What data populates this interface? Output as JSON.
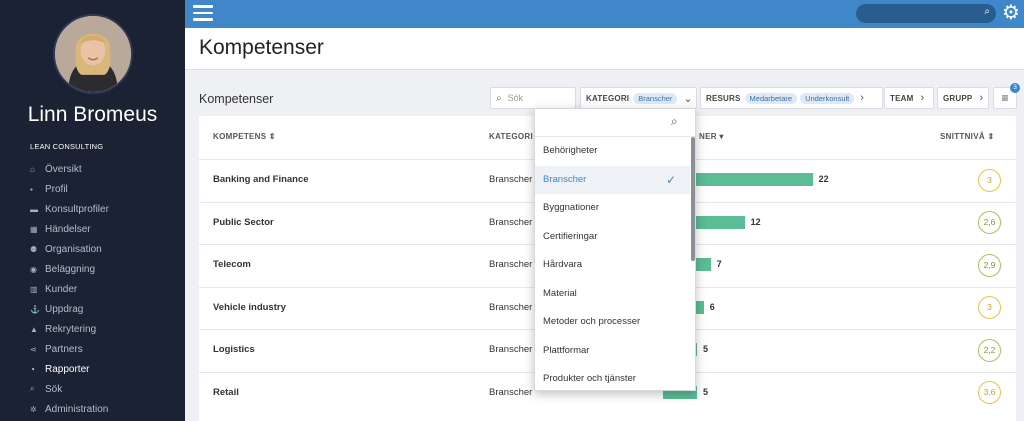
{
  "sidebar": {
    "user_name": "Linn Bromeus",
    "company": "LEAN CONSULTING",
    "items": [
      {
        "label": "Översikt",
        "icon": "home-icon",
        "glyph": "⌂"
      },
      {
        "label": "Profil",
        "icon": "profile-icon",
        "glyph": "▪"
      },
      {
        "label": "Konsultprofiler",
        "icon": "briefcase-icon",
        "glyph": "▬"
      },
      {
        "label": "Händelser",
        "icon": "calendar-icon",
        "glyph": "▦"
      },
      {
        "label": "Organisation",
        "icon": "people-icon",
        "glyph": "⚉"
      },
      {
        "label": "Beläggning",
        "icon": "target-icon",
        "glyph": "◉"
      },
      {
        "label": "Kunder",
        "icon": "building-icon",
        "glyph": "▥"
      },
      {
        "label": "Uppdrag",
        "icon": "anchor-icon",
        "glyph": "⚓"
      },
      {
        "label": "Rekrytering",
        "icon": "graduation-icon",
        "glyph": "▲"
      },
      {
        "label": "Partners",
        "icon": "share-icon",
        "glyph": "⋖"
      },
      {
        "label": "Rapporter",
        "icon": "pie-chart-icon",
        "glyph": "◔"
      },
      {
        "label": "Sök",
        "icon": "search-icon",
        "glyph": "⌕"
      },
      {
        "label": "Administration",
        "icon": "gear-icon",
        "glyph": "✲"
      }
    ],
    "active": "Rapporter"
  },
  "topbar": {
    "menu_icon": "hamburger-icon",
    "search_icon": "search-icon",
    "settings_icon": "gear-icon"
  },
  "page": {
    "title": "Kompetenser",
    "card_title": "Kompetenser"
  },
  "filters": {
    "search_placeholder": "Sök",
    "kategori": {
      "label": "KATEGORI",
      "chips": [
        "Branscher"
      ]
    },
    "resurs": {
      "label": "RESURS",
      "chips": [
        "Medarbetare",
        "Underkonsult"
      ]
    },
    "team": {
      "label": "TEAM"
    },
    "grupp": {
      "label": "GRUPP"
    },
    "sort_badge": "3"
  },
  "table": {
    "headers": {
      "kompetens": "KOMPETENS",
      "kategori": "KATEGORI",
      "count": "NER",
      "snittniva": "SNITTNIVÅ"
    },
    "rows": [
      {
        "name": "Banking and Finance",
        "category": "Branscher",
        "count": 22,
        "level": "3",
        "level_color": "#e8c24a"
      },
      {
        "name": "Public Sector",
        "category": "Branscher",
        "count": 12,
        "level": "2,6",
        "level_color": "#a7c25c"
      },
      {
        "name": "Telecom",
        "category": "Branscher",
        "count": 7,
        "level": "2,9",
        "level_color": "#a7c25c"
      },
      {
        "name": "Vehicle industry",
        "category": "Branscher",
        "count": 6,
        "level": "3",
        "level_color": "#e8c24a"
      },
      {
        "name": "Logistics",
        "category": "Branscher",
        "count": 5,
        "level": "2,2",
        "level_color": "#a7c25c"
      },
      {
        "name": "Retail",
        "category": "Branscher",
        "count": 5,
        "level": "3,6",
        "level_color": "#e8c24a"
      }
    ]
  },
  "dropdown": {
    "selected": "Branscher",
    "options": [
      "Behörigheter",
      "Branscher",
      "Byggnationer",
      "Certifieringar",
      "Hårdvara",
      "Material",
      "Metoder och processer",
      "Plattformar",
      "Produkter och tjänster"
    ]
  },
  "colors": {
    "sidebar_bg": "#1b2233",
    "topbar_bg": "#3f87c8",
    "bar_green": "#5cbc95",
    "level_yellow": "#e8c24a",
    "level_green": "#a7c25c"
  }
}
